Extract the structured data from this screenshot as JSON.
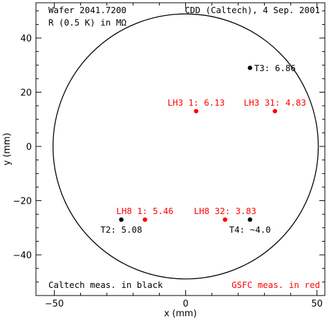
{
  "chart_data": {
    "type": "scatter",
    "xlabel": "x (mm)",
    "ylabel": "y (mm)",
    "xlim": [
      -57,
      53
    ],
    "ylim": [
      -55,
      53
    ],
    "x_ticks": [
      -50,
      0,
      50
    ],
    "y_ticks": [
      -40,
      -20,
      0,
      20,
      40
    ],
    "grid": false,
    "outline_circle": {
      "cx": 0,
      "cy": 0,
      "r": 50.5
    },
    "header_left": [
      "Wafer 2041.7200",
      "R (0.5 K) in MΩ"
    ],
    "header_right": "CDD (Caltech), 4 Sep. 2001",
    "footer_left": "Caltech meas. in black",
    "footer_right": "GSFC meas. in red",
    "colors": {
      "caltech": "#000000",
      "gsfc": "#ff0000"
    },
    "series": [
      {
        "name": "Caltech meas. in black",
        "color": "#000000",
        "points": [
          {
            "x": 24.5,
            "y": 29,
            "label": "T3: 6.86",
            "label_pos": "right"
          },
          {
            "x": -24.5,
            "y": -27,
            "label": "T2: 5.08",
            "label_pos": "below"
          },
          {
            "x": 24.5,
            "y": -27,
            "label": "T4: ~4.0",
            "label_pos": "below"
          }
        ]
      },
      {
        "name": "GSFC meas. in red",
        "color": "#ff0000",
        "points": [
          {
            "x": 4,
            "y": 13,
            "label": "LH3 1: 6.13",
            "label_pos": "above"
          },
          {
            "x": 34,
            "y": 13,
            "label": "LH3 31: 4.83",
            "label_pos": "above"
          },
          {
            "x": -15.5,
            "y": -27,
            "label": "LH8 1: 5.46",
            "label_pos": "above"
          },
          {
            "x": 15,
            "y": -27,
            "label": "LH8 32: 3.83",
            "label_pos": "above"
          }
        ]
      }
    ]
  }
}
